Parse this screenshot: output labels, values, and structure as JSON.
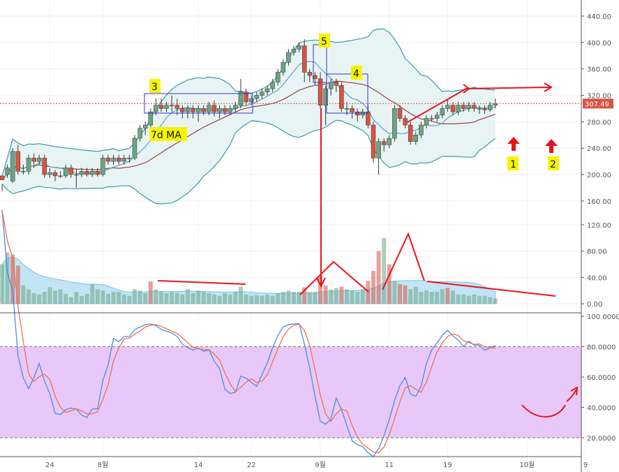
{
  "chart_data": {
    "type": "candlestick",
    "price_axis": {
      "ticks": [
        "440.00",
        "400.00",
        "360.00",
        "320.00",
        "280.00",
        "240.00",
        "200.00",
        "160.00"
      ],
      "min": 130,
      "max": 460
    },
    "volume_axis": {
      "ticks": [
        "120.00",
        "80.00",
        "40.00",
        "0.00"
      ],
      "min": 0,
      "max": 130
    },
    "stoch_axis": {
      "ticks": [
        "100.0000",
        "80.0000",
        "60.0000",
        "40.0000",
        "20.0000"
      ],
      "min": 0,
      "max": 100,
      "band": [
        20,
        80
      ]
    },
    "x_labels": [
      {
        "text": "24",
        "i": 9
      },
      {
        "text": "8월",
        "i": 19
      },
      {
        "text": "14",
        "i": 37
      },
      {
        "text": "22",
        "i": 47
      },
      {
        "text": "9월",
        "i": 60
      },
      {
        "text": "11",
        "i": 73
      },
      {
        "text": "19",
        "i": 84
      },
      {
        "text": "10월",
        "i": 99
      },
      {
        "text": "9",
        "i": 110
      }
    ],
    "last_price": "307.49",
    "last_price_value": 307.49,
    "candles": [
      [
        198,
        192,
        185,
        175
      ],
      [
        200,
        210,
        215,
        195
      ],
      [
        190,
        235,
        240,
        187
      ],
      [
        235,
        205,
        245,
        200
      ],
      [
        205,
        205,
        215,
        200
      ],
      [
        205,
        225,
        230,
        200
      ],
      [
        225,
        220,
        232,
        210
      ],
      [
        220,
        225,
        230,
        215
      ],
      [
        225,
        200,
        230,
        195
      ],
      [
        200,
        203,
        210,
        195
      ],
      [
        203,
        198,
        207,
        190
      ],
      [
        198,
        198,
        205,
        195
      ],
      [
        198,
        210,
        215,
        195
      ],
      [
        210,
        200,
        215,
        195
      ],
      [
        200,
        200,
        208,
        180
      ],
      [
        200,
        205,
        210,
        196
      ],
      [
        205,
        200,
        210,
        197
      ],
      [
        200,
        205,
        210,
        196
      ],
      [
        205,
        200,
        210,
        197
      ],
      [
        200,
        225,
        230,
        197
      ],
      [
        225,
        220,
        230,
        215
      ],
      [
        220,
        225,
        230,
        215
      ],
      [
        225,
        220,
        230,
        215
      ],
      [
        220,
        225,
        230,
        215
      ],
      [
        225,
        225,
        230,
        218
      ],
      [
        225,
        255,
        260,
        222
      ],
      [
        255,
        270,
        275,
        250
      ],
      [
        270,
        275,
        280,
        260
      ],
      [
        275,
        295,
        300,
        270
      ],
      [
        295,
        305,
        315,
        290
      ],
      [
        305,
        300,
        315,
        295
      ],
      [
        300,
        305,
        310,
        295
      ],
      [
        305,
        305,
        320,
        295
      ],
      [
        305,
        300,
        315,
        290
      ],
      [
        300,
        295,
        305,
        285
      ],
      [
        295,
        300,
        305,
        285
      ],
      [
        300,
        295,
        305,
        285
      ],
      [
        295,
        300,
        305,
        280
      ],
      [
        300,
        295,
        305,
        290
      ],
      [
        295,
        305,
        310,
        290
      ],
      [
        305,
        295,
        312,
        288
      ],
      [
        295,
        300,
        305,
        285
      ],
      [
        300,
        295,
        305,
        290
      ],
      [
        295,
        300,
        305,
        290
      ],
      [
        300,
        305,
        310,
        295
      ],
      [
        305,
        325,
        345,
        300
      ],
      [
        325,
        310,
        330,
        305
      ],
      [
        310,
        315,
        320,
        305
      ],
      [
        315,
        320,
        325,
        310
      ],
      [
        320,
        325,
        330,
        315
      ],
      [
        325,
        330,
        335,
        320
      ],
      [
        330,
        340,
        345,
        325
      ],
      [
        340,
        355,
        360,
        335
      ],
      [
        355,
        370,
        375,
        350
      ],
      [
        370,
        385,
        390,
        365
      ],
      [
        385,
        390,
        395,
        380
      ],
      [
        390,
        395,
        400,
        385
      ],
      [
        395,
        355,
        405,
        340
      ],
      [
        355,
        350,
        360,
        340
      ],
      [
        350,
        345,
        355,
        335
      ],
      [
        345,
        305,
        355,
        300
      ],
      [
        305,
        330,
        335,
        275
      ],
      [
        330,
        340,
        345,
        320
      ],
      [
        340,
        335,
        345,
        325
      ],
      [
        335,
        300,
        340,
        295
      ],
      [
        300,
        300,
        310,
        290
      ],
      [
        300,
        295,
        305,
        285
      ],
      [
        295,
        290,
        300,
        280
      ],
      [
        290,
        295,
        300,
        285
      ],
      [
        295,
        275,
        305,
        270
      ],
      [
        275,
        225,
        280,
        218
      ],
      [
        225,
        250,
        255,
        200
      ],
      [
        250,
        245,
        255,
        235
      ],
      [
        245,
        255,
        260,
        240
      ],
      [
        255,
        300,
        305,
        250
      ],
      [
        300,
        285,
        305,
        280
      ],
      [
        285,
        275,
        290,
        270
      ],
      [
        275,
        250,
        280,
        245
      ],
      [
        250,
        260,
        265,
        245
      ],
      [
        260,
        275,
        280,
        255
      ],
      [
        275,
        285,
        290,
        270
      ],
      [
        285,
        285,
        290,
        280
      ],
      [
        285,
        290,
        295,
        280
      ],
      [
        290,
        300,
        305,
        285
      ],
      [
        300,
        305,
        315,
        295
      ],
      [
        305,
        295,
        310,
        290
      ],
      [
        295,
        305,
        310,
        290
      ],
      [
        305,
        300,
        310,
        295
      ],
      [
        300,
        305,
        310,
        295
      ],
      [
        305,
        300,
        310,
        295
      ],
      [
        300,
        300,
        305,
        292
      ],
      [
        300,
        298,
        305,
        292
      ],
      [
        298,
        305,
        310,
        295
      ],
      [
        305,
        307.49,
        315,
        300
      ]
    ],
    "volumes": [
      [
        60,
        "up"
      ],
      [
        78,
        "up"
      ],
      [
        75,
        "down"
      ],
      [
        58,
        "down"
      ],
      [
        28,
        "up"
      ],
      [
        22,
        "up"
      ],
      [
        16,
        "up"
      ],
      [
        14,
        "up"
      ],
      [
        18,
        "up"
      ],
      [
        25,
        "up"
      ],
      [
        20,
        "up"
      ],
      [
        22,
        "up"
      ],
      [
        15,
        "up"
      ],
      [
        10,
        "up"
      ],
      [
        18,
        "up"
      ],
      [
        12,
        "up"
      ],
      [
        15,
        "up"
      ],
      [
        30,
        "up"
      ],
      [
        22,
        "up"
      ],
      [
        20,
        "up"
      ],
      [
        15,
        "up"
      ],
      [
        18,
        "up"
      ],
      [
        18,
        "up"
      ],
      [
        14,
        "up"
      ],
      [
        12,
        "up"
      ],
      [
        22,
        "up"
      ],
      [
        20,
        "up"
      ],
      [
        16,
        "up"
      ],
      [
        34,
        "down"
      ],
      [
        22,
        "up"
      ],
      [
        18,
        "up"
      ],
      [
        16,
        "up"
      ],
      [
        18,
        "up"
      ],
      [
        16,
        "up"
      ],
      [
        14,
        "up"
      ],
      [
        22,
        "up"
      ],
      [
        16,
        "up"
      ],
      [
        20,
        "up"
      ],
      [
        18,
        "up"
      ],
      [
        16,
        "up"
      ],
      [
        14,
        "up"
      ],
      [
        12,
        "up"
      ],
      [
        16,
        "up"
      ],
      [
        14,
        "up"
      ],
      [
        18,
        "up"
      ],
      [
        26,
        "up"
      ],
      [
        14,
        "up"
      ],
      [
        12,
        "up"
      ],
      [
        13,
        "up"
      ],
      [
        12,
        "up"
      ],
      [
        14,
        "up"
      ],
      [
        12,
        "up"
      ],
      [
        16,
        "up"
      ],
      [
        18,
        "up"
      ],
      [
        20,
        "up"
      ],
      [
        18,
        "up"
      ],
      [
        18,
        "up"
      ],
      [
        25,
        "down"
      ],
      [
        18,
        "up"
      ],
      [
        18,
        "up"
      ],
      [
        42,
        "down"
      ],
      [
        28,
        "down"
      ],
      [
        22,
        "up"
      ],
      [
        24,
        "up"
      ],
      [
        26,
        "down"
      ],
      [
        22,
        "up"
      ],
      [
        20,
        "up"
      ],
      [
        18,
        "up"
      ],
      [
        22,
        "up"
      ],
      [
        35,
        "down"
      ],
      [
        50,
        "down"
      ],
      [
        80,
        "down"
      ],
      [
        100,
        "up"
      ],
      [
        60,
        "down"
      ],
      [
        35,
        "up"
      ],
      [
        30,
        "down"
      ],
      [
        28,
        "down"
      ],
      [
        22,
        "up"
      ],
      [
        26,
        "up"
      ],
      [
        18,
        "up"
      ],
      [
        20,
        "up"
      ],
      [
        18,
        "up"
      ],
      [
        18,
        "up"
      ],
      [
        22,
        "up"
      ],
      [
        24,
        "down"
      ],
      [
        20,
        "up"
      ],
      [
        14,
        "up"
      ],
      [
        14,
        "up"
      ],
      [
        12,
        "up"
      ],
      [
        14,
        "up"
      ],
      [
        12,
        "up"
      ],
      [
        12,
        "up"
      ],
      [
        10,
        "up"
      ],
      [
        8,
        "up"
      ]
    ],
    "annotations": {
      "labels": [
        {
          "text": "3"
        },
        {
          "text": "5"
        },
        {
          "text": "4"
        },
        {
          "text": "7d MA"
        },
        {
          "text": "1"
        },
        {
          "text": "2"
        }
      ]
    },
    "colors": {
      "up": "#6ba583",
      "down": "#d75442",
      "bb_band": "#3c9aa8",
      "bb_fill": "#e8f4f4",
      "ma_short": "#5aa0c8",
      "ma_long": "#a04040",
      "stoch_k": "#4a8fd9",
      "stoch_d": "#f07050",
      "stoch_fill": "#e8c8f8",
      "annotation_red": "#e8141c",
      "highlight": "#f5f500",
      "box": "#3333cc"
    }
  }
}
